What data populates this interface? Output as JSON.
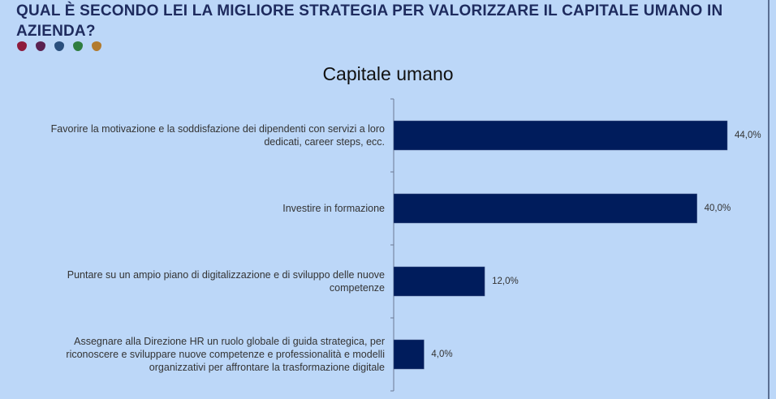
{
  "header": {
    "title": "QUAL È SECONDO LEI LA MIGLIORE STRATEGIA PER VALORIZZARE IL CAPITALE UMANO IN AZIENDA?",
    "dots": [
      "#8e1b3c",
      "#5a2150",
      "#2a4f7d",
      "#2f7d3f",
      "#b27a2d"
    ]
  },
  "chart_data": {
    "type": "bar",
    "orientation": "horizontal",
    "title": "Capitale umano",
    "categories": [
      "Favorire la motivazione e la soddisfazione dei dipendenti con servizi a loro dedicati, career steps, ecc.",
      "Investire in formazione",
      "Puntare su un ampio piano di digitalizzazione e di sviluppo delle nuove competenze",
      "Assegnare alla Direzione HR un ruolo globale di guida strategica, per riconoscere e sviluppare nuove competenze e professionalità e modelli organizzativi per affrontare la trasformazione digitale"
    ],
    "values": [
      44.0,
      40.0,
      12.0,
      4.0
    ],
    "labels": [
      "44,0%",
      "40,0%",
      "12,0%",
      "4,0%"
    ],
    "bar_color": "#001c5c",
    "xlim": [
      0,
      44
    ]
  }
}
